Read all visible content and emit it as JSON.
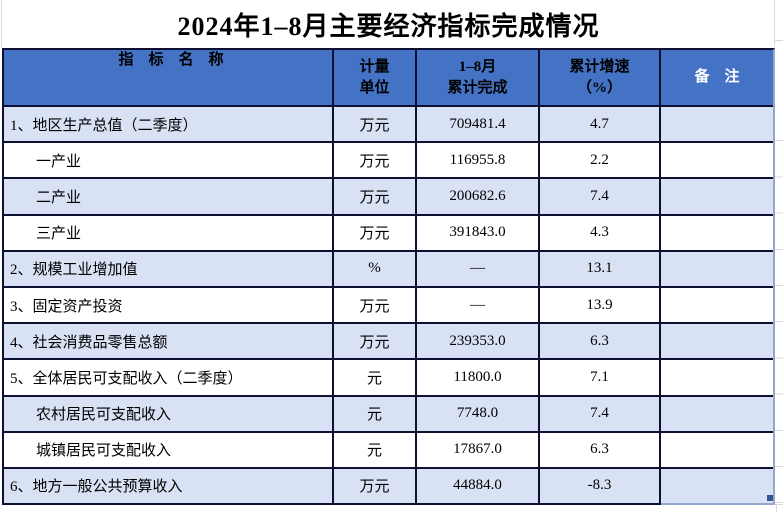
{
  "title": "2024年1–8月主要经济指标完成情况",
  "table": {
    "headers": {
      "indicator": "指　标　名　称",
      "unit_line1": "计量",
      "unit_line2": "单位",
      "value_line1": "1–8月",
      "value_line2": "累计完成",
      "growth_line1": "累计增速",
      "growth_line2": "（%）",
      "remark": "备　注"
    },
    "rows": [
      {
        "name": "1、地区生产总值（二季度）",
        "indent": false,
        "unit": "万元",
        "value": "709481.4",
        "growth": "4.7",
        "remark": ""
      },
      {
        "name": "一产业",
        "indent": true,
        "unit": "万元",
        "value": "116955.8",
        "growth": "2.2",
        "remark": ""
      },
      {
        "name": "二产业",
        "indent": true,
        "unit": "万元",
        "value": "200682.6",
        "growth": "7.4",
        "remark": ""
      },
      {
        "name": "三产业",
        "indent": true,
        "unit": "万元",
        "value": "391843.0",
        "growth": "4.3",
        "remark": ""
      },
      {
        "name": "2、规模工业增加值",
        "indent": false,
        "unit": "%",
        "value": "—",
        "growth": "13.1",
        "remark": ""
      },
      {
        "name": "3、固定资产投资",
        "indent": false,
        "unit": "万元",
        "value": "—",
        "growth": "13.9",
        "remark": ""
      },
      {
        "name": "4、社会消费品零售总额",
        "indent": false,
        "unit": "万元",
        "value": "239353.0",
        "growth": "6.3",
        "remark": ""
      },
      {
        "name": "5、全体居民可支配收入（二季度）",
        "indent": false,
        "unit": "元",
        "value": "11800.0",
        "growth": "7.1",
        "remark": ""
      },
      {
        "name": "农村居民可支配收入",
        "indent": true,
        "unit": "元",
        "value": "7748.0",
        "growth": "7.4",
        "remark": ""
      },
      {
        "name": "城镇居民可支配收入",
        "indent": true,
        "unit": "元",
        "value": "17867.0",
        "growth": "6.3",
        "remark": ""
      },
      {
        "name": "6、地方一般公共预算收入",
        "indent": false,
        "unit": "万元",
        "value": "44884.0",
        "growth": "-8.3",
        "remark": ""
      }
    ]
  },
  "colors": {
    "header_bg": "#4472C4",
    "row_alt_bg": "#D9E1F4",
    "border_dark": "#0E1033",
    "border_light": "#94A7CD",
    "grid_gray": "#D9D9D9",
    "handle": "#2F5597"
  }
}
